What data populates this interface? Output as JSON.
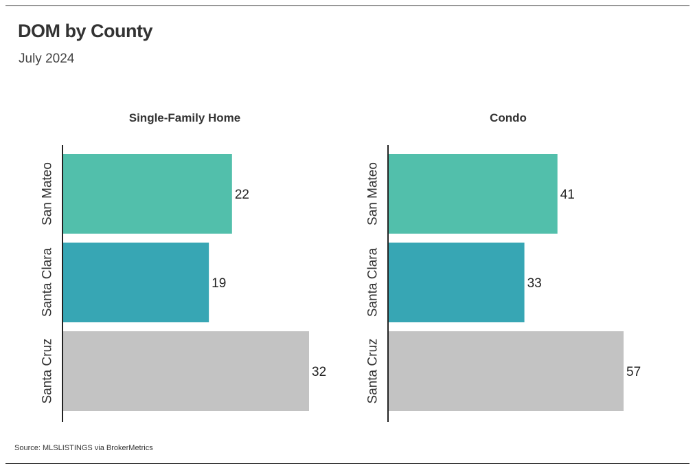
{
  "title": "DOM by County",
  "subtitle": "July 2024",
  "source": "Source:  MLSLISTINGS via BrokerMetrics",
  "chart_data": [
    {
      "type": "bar",
      "orientation": "horizontal",
      "title": "Single-Family Home",
      "categories": [
        "San Mateo",
        "Santa Clara",
        "Santa Cruz"
      ],
      "values": [
        22,
        19,
        32
      ],
      "colors": [
        "#52bfab",
        "#37a6b4",
        "#c3c3c3"
      ],
      "xlim": [
        0,
        32
      ],
      "grid": false,
      "legend": "none"
    },
    {
      "type": "bar",
      "orientation": "horizontal",
      "title": "Condo",
      "categories": [
        "San Mateo",
        "Santa Clara",
        "Santa Cruz"
      ],
      "values": [
        41,
        33,
        57
      ],
      "colors": [
        "#52bfab",
        "#37a6b4",
        "#c3c3c3"
      ],
      "xlim": [
        0,
        57
      ],
      "grid": false,
      "legend": "none"
    }
  ]
}
